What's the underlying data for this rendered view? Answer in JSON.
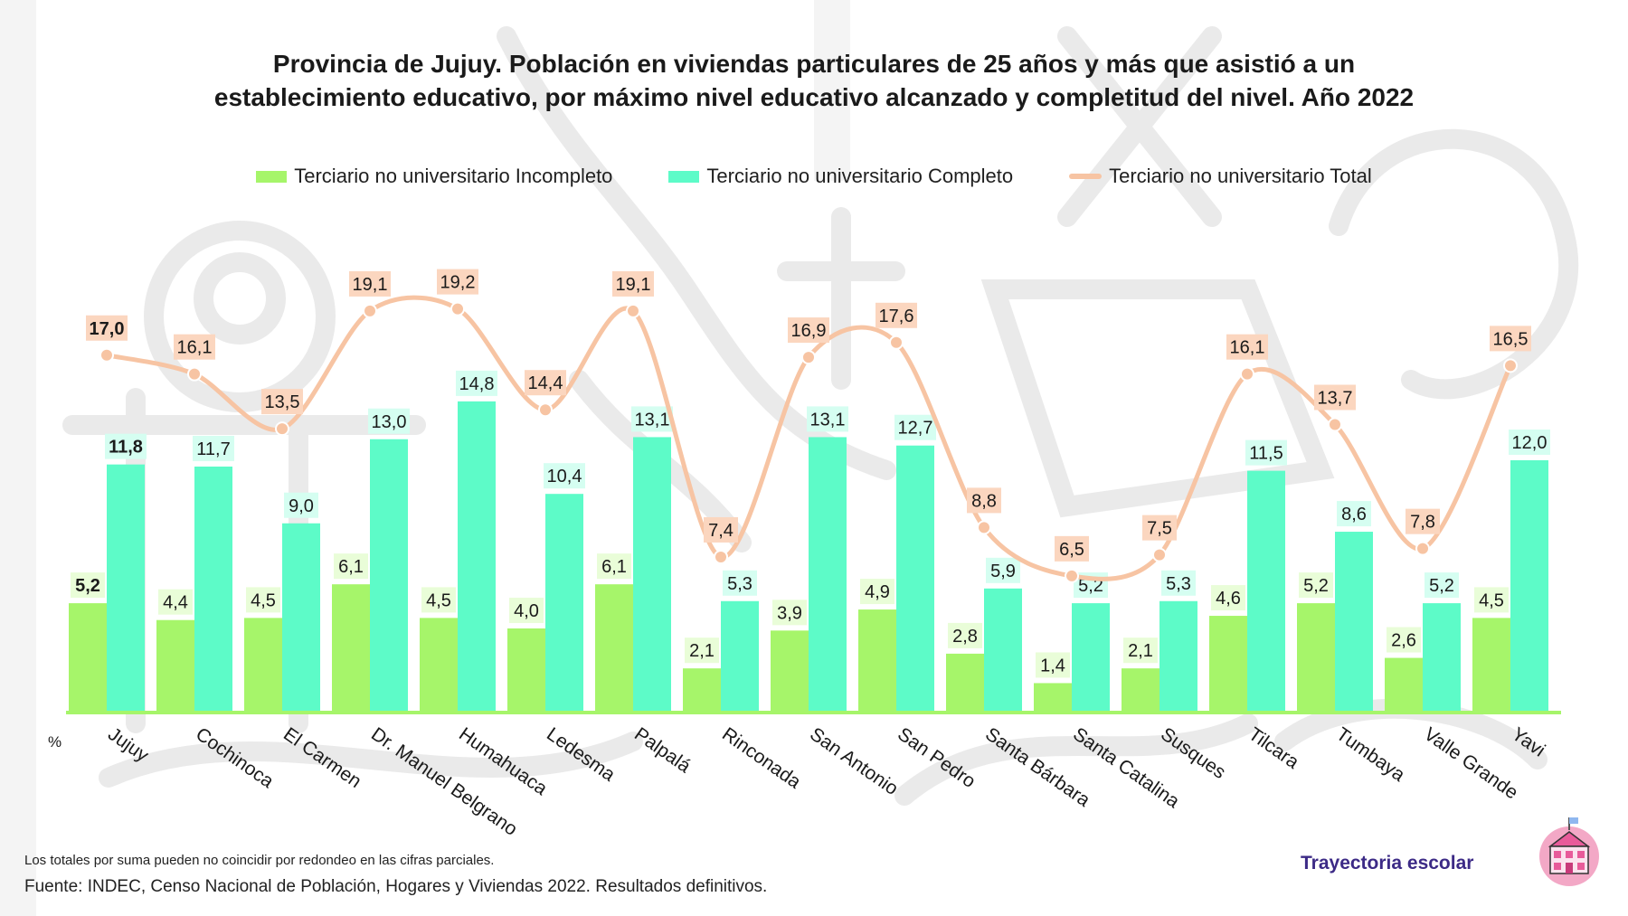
{
  "title_line1": "Provincia de Jujuy. Población en viviendas particulares de 25 años y más que asistió a un",
  "title_line2": "establecimiento educativo, por máximo nivel educativo alcanzado y completitud del nivel. Año 2022",
  "legend": {
    "incompleto": "Terciario no universitario Incompleto",
    "completo": "Terciario no universitario Completo",
    "total": "Terciario no universitario Total"
  },
  "colors": {
    "incompleto": "#a6f56a",
    "completo": "#5dfbc8",
    "total": "#f7c4a3",
    "label_bg_incompleto": "#e9fdd8",
    "label_bg_completo": "#d5fef1",
    "label_bg_total": "#fbd6bf",
    "baseline": "#a6f56a"
  },
  "chart_data": {
    "type": "bar",
    "ylabel": "%",
    "ylim": [
      0,
      24
    ],
    "categories": [
      "Jujuy",
      "Cochinoca",
      "El Carmen",
      "Dr. Manuel Belgrano",
      "Humahuaca",
      "Ledesma",
      "Palpalá",
      "Rinconada",
      "San Antonio",
      "San Pedro",
      "Santa Bárbara",
      "Santa Catalina",
      "Susques",
      "Tilcara",
      "Tumbaya",
      "Valle Grande",
      "Yavi"
    ],
    "series": [
      {
        "name": "Terciario no universitario Incompleto",
        "type": "bar",
        "values": [
          5.2,
          4.4,
          4.5,
          6.1,
          4.5,
          4.0,
          6.1,
          2.1,
          3.9,
          4.9,
          2.8,
          1.4,
          2.1,
          4.6,
          5.2,
          2.6,
          4.5
        ],
        "labels": [
          "5,2",
          "4,4",
          "4,5",
          "6,1",
          "4,5",
          "4,0",
          "6,1",
          "2,1",
          "3,9",
          "4,9",
          "2,8",
          "1,4",
          "2,1",
          "4,6",
          "5,2",
          "2,6",
          "4,5"
        ]
      },
      {
        "name": "Terciario no universitario Completo",
        "type": "bar",
        "values": [
          11.8,
          11.7,
          9.0,
          13.0,
          14.8,
          10.4,
          13.1,
          5.3,
          13.1,
          12.7,
          5.9,
          5.2,
          5.3,
          11.5,
          8.6,
          5.2,
          12.0
        ],
        "labels": [
          "11,8",
          "11,7",
          "9,0",
          "13,0",
          "14,8",
          "10,4",
          "13,1",
          "5,3",
          "13,1",
          "12,7",
          "5,9",
          "5,2",
          "5,3",
          "11,5",
          "8,6",
          "5,2",
          "12,0"
        ]
      },
      {
        "name": "Terciario no universitario Total",
        "type": "line",
        "values": [
          17.0,
          16.1,
          13.5,
          19.1,
          19.2,
          14.4,
          19.1,
          7.4,
          16.9,
          17.6,
          8.8,
          6.5,
          7.5,
          16.1,
          13.7,
          7.8,
          16.5
        ],
        "labels": [
          "17,0",
          "16,1",
          "13,5",
          "19,1",
          "19,2",
          "14,4",
          "19,1",
          "7,4",
          "16,9",
          "17,6",
          "8,8",
          "6,5",
          "7,5",
          "16,1",
          "13,7",
          "7,8",
          "16,5"
        ]
      }
    ],
    "bold_category": "Jujuy"
  },
  "footnote": "Los totales por suma pueden no coincidir por redondeo en las cifras parciales.",
  "source": "Fuente: INDEC, Censo Nacional de Población, Hogares y Viviendas 2022. Resultados definitivos.",
  "brand": "Trayectoria escolar"
}
